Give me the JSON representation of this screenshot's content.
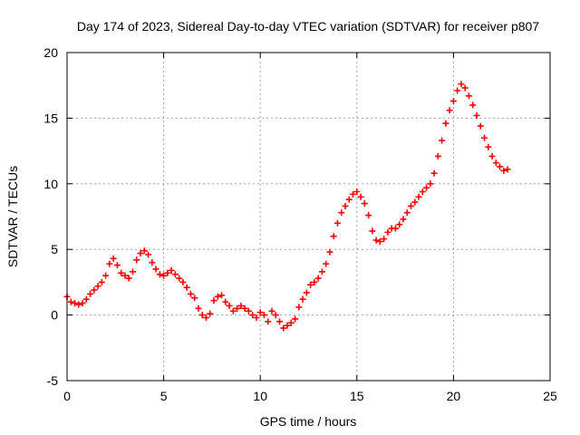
{
  "chart_data": {
    "type": "scatter",
    "title": "Day 174 of 2023, Sidereal Day-to-day VTEC variation (SDTVAR) for receiver p807",
    "xlabel": "GPS time / hours",
    "ylabel": "SDTVAR / TECUs",
    "xlim": [
      0,
      25
    ],
    "ylim": [
      -5,
      20
    ],
    "xticks": [
      0,
      5,
      10,
      15,
      20,
      25
    ],
    "yticks": [
      -5,
      0,
      5,
      10,
      15,
      20
    ],
    "grid": true,
    "marker": "+",
    "color": "#ff0000",
    "series": [
      {
        "name": "SDTVAR",
        "x": [
          0.0,
          0.2,
          0.4,
          0.6,
          0.8,
          1.0,
          1.2,
          1.4,
          1.6,
          1.8,
          2.0,
          2.2,
          2.4,
          2.6,
          2.8,
          3.0,
          3.2,
          3.4,
          3.6,
          3.8,
          4.0,
          4.2,
          4.4,
          4.6,
          4.8,
          5.0,
          5.2,
          5.4,
          5.6,
          5.8,
          6.0,
          6.2,
          6.4,
          6.6,
          6.8,
          7.0,
          7.2,
          7.4,
          7.6,
          7.8,
          8.0,
          8.2,
          8.4,
          8.6,
          8.8,
          9.0,
          9.2,
          9.4,
          9.6,
          9.8,
          10.0,
          10.2,
          10.4,
          10.6,
          10.8,
          11.0,
          11.2,
          11.4,
          11.6,
          11.8,
          12.0,
          12.2,
          12.4,
          12.6,
          12.8,
          13.0,
          13.2,
          13.4,
          13.6,
          13.8,
          14.0,
          14.2,
          14.4,
          14.6,
          14.8,
          15.0,
          15.2,
          15.4,
          15.6,
          15.8,
          16.0,
          16.2,
          16.4,
          16.6,
          16.8,
          17.0,
          17.2,
          17.4,
          17.6,
          17.8,
          18.0,
          18.2,
          18.4,
          18.6,
          18.8,
          19.0,
          19.2,
          19.4,
          19.6,
          19.8,
          20.0,
          20.2,
          20.4,
          20.6,
          20.8,
          21.0,
          21.2,
          21.4,
          21.6,
          21.8,
          22.0,
          22.2,
          22.4,
          22.6,
          22.8
        ],
        "y": [
          1.4,
          1.0,
          0.9,
          0.8,
          0.9,
          1.2,
          1.6,
          1.9,
          2.2,
          2.5,
          3.0,
          3.9,
          4.3,
          3.8,
          3.2,
          3.0,
          2.8,
          3.3,
          4.2,
          4.7,
          4.9,
          4.6,
          4.0,
          3.5,
          3.1,
          3.0,
          3.2,
          3.4,
          3.1,
          2.8,
          2.5,
          2.1,
          1.6,
          1.3,
          0.5,
          0.0,
          -0.2,
          0.1,
          1.1,
          1.4,
          1.5,
          1.0,
          0.7,
          0.3,
          0.5,
          0.7,
          0.5,
          0.3,
          0.0,
          -0.2,
          0.2,
          0.0,
          -0.5,
          0.3,
          0.0,
          -0.5,
          -1.0,
          -0.8,
          -0.6,
          -0.3,
          0.6,
          1.2,
          1.7,
          2.3,
          2.5,
          2.8,
          3.3,
          3.9,
          4.8,
          6.0,
          7.0,
          7.8,
          8.3,
          8.8,
          9.2,
          9.4,
          9.0,
          8.5,
          7.6,
          6.4,
          5.7,
          5.6,
          5.8,
          6.3,
          6.6,
          6.6,
          6.9,
          7.3,
          7.8,
          8.3,
          8.6,
          9.0,
          9.4,
          9.7,
          10.0,
          10.8,
          12.1,
          13.3,
          14.6,
          15.6,
          16.3,
          17.1,
          17.6,
          17.3,
          16.7,
          16.0,
          15.2,
          14.4,
          13.5,
          12.8,
          12.1,
          11.6,
          11.3,
          11.0,
          11.1
        ]
      }
    ]
  }
}
